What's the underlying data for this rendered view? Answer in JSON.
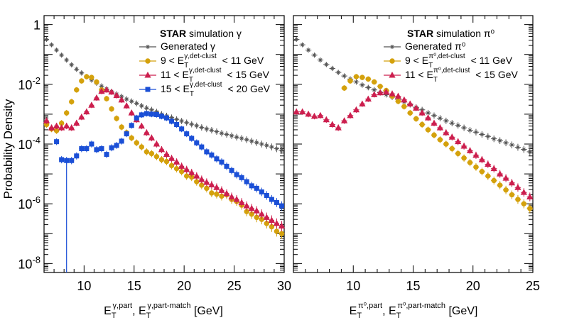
{
  "chart_data": [
    {
      "type": "scatter",
      "panel": "left",
      "legend_header_bold": "STAR",
      "legend_header": "simulation γ",
      "xlim": [
        6,
        30
      ],
      "ylim_log10": [
        -8.3,
        0.3
      ],
      "xticks": [
        10,
        15,
        20,
        25,
        30
      ],
      "ylabel": "Probability Density",
      "xlabel_parts": [
        "E",
        "T",
        "γ,part",
        ", E",
        "T",
        "γ,part-match",
        " [GeV]"
      ],
      "series": [
        {
          "name": "Generated γ",
          "legend_parts": [
            "Generated γ"
          ],
          "color": "#555555",
          "marker": "star",
          "x": [
            6.25,
            6.75,
            7.25,
            7.75,
            8.25,
            8.75,
            9.25,
            9.75,
            10.25,
            10.75,
            11.25,
            11.75,
            12.25,
            12.75,
            13.25,
            13.75,
            14.25,
            14.75,
            15.25,
            15.75,
            16.25,
            16.75,
            17.25,
            17.75,
            18.25,
            18.75,
            19.25,
            19.75,
            20.25,
            20.75,
            21.25,
            21.75,
            22.25,
            22.75,
            23.25,
            23.75,
            24.25,
            24.75,
            25.25,
            25.75,
            26.25,
            26.75,
            27.25,
            27.75,
            28.25,
            28.75,
            29.25,
            29.75
          ],
          "y": [
            0.32,
            0.21,
            0.14,
            0.095,
            0.065,
            0.045,
            0.032,
            0.024,
            0.018,
            0.014,
            0.011,
            0.0087,
            0.007,
            0.0057,
            0.0047,
            0.0039,
            0.0032,
            0.0027,
            0.0023,
            0.0019,
            0.0016,
            0.0014,
            0.0012,
            0.001,
            0.00088,
            0.00077,
            0.00067,
            0.00059,
            0.00052,
            0.00046,
            0.00041,
            0.00036,
            0.00032,
            0.00029,
            0.00026,
            0.00023,
            0.00021,
            0.00019,
            0.00017,
            0.000155,
            0.00014,
            0.000125,
            0.000112,
            0.0001,
            9e-05,
            8e-05,
            7e-05,
            6.2e-05
          ]
        },
        {
          "name": "9 < E_T^{γ,det-clust} < 11 GeV",
          "legend_parts": [
            "9 < E",
            "T",
            "γ,det-clust",
            "< 11 GeV"
          ],
          "color": "#d4a10c",
          "marker": "circle",
          "x": [
            6.25,
            6.75,
            7.25,
            7.75,
            8.25,
            8.75,
            9.25,
            9.75,
            10.25,
            10.75,
            11.25,
            11.75,
            12.25,
            12.75,
            13.25,
            13.75,
            14.25,
            14.75,
            15.25,
            15.75,
            16.25,
            16.75,
            17.25,
            17.75,
            18.25,
            18.75,
            19.25,
            19.75,
            20.25,
            20.75,
            21.25,
            21.75,
            22.25,
            22.75,
            23.25,
            23.75,
            24.25,
            24.75,
            25.25,
            25.75,
            26.25,
            26.75,
            27.25,
            27.75,
            28.25,
            28.75,
            29.25,
            29.75
          ],
          "y": [
            0.00045,
            0.00032,
            0.00028,
            0.0005,
            0.0011,
            0.0026,
            0.0065,
            0.013,
            0.018,
            0.017,
            0.012,
            0.0065,
            0.0033,
            0.0015,
            0.00072,
            0.00037,
            0.00024,
            0.00016,
            0.00011,
            8e-05,
            5.5e-05,
            4.8e-05,
            3.8e-05,
            3e-05,
            2.6e-05,
            1.9e-05,
            1.5e-05,
            1.2e-05,
            8.5e-06,
            7.8e-06,
            5.5e-06,
            4.2e-06,
            3.3e-06,
            2.3e-06,
            2.1e-06,
            1.8e-06,
            2e-06,
            1.4e-06,
            1.2e-06,
            9e-07,
            5.5e-07,
            4.5e-07,
            3.5e-07,
            3e-07,
            2.2e-07,
            1.7e-07,
            1.2e-07,
            1e-07
          ]
        },
        {
          "name": "11 < E_T^{γ,det-clust} < 15 GeV",
          "legend_parts": [
            "11 < E",
            "T",
            "γ,det-clust",
            "< 15 GeV"
          ],
          "color": "#cc1f4e",
          "marker": "triangle",
          "x": [
            6.25,
            6.75,
            7.25,
            7.75,
            8.25,
            8.75,
            9.25,
            9.75,
            10.25,
            10.75,
            11.25,
            11.75,
            12.25,
            12.75,
            13.25,
            13.75,
            14.25,
            14.75,
            15.25,
            15.75,
            16.25,
            16.75,
            17.25,
            17.75,
            18.25,
            18.75,
            19.25,
            19.75,
            20.25,
            20.75,
            21.25,
            21.75,
            22.25,
            22.75,
            23.25,
            23.75,
            24.25,
            24.75,
            25.25,
            25.75,
            26.25,
            26.75,
            27.25,
            27.75,
            28.25,
            28.75,
            29.25,
            29.75
          ],
          "y": [
            0.0006,
            0.00035,
            0.0004,
            0.00035,
            0.0004,
            0.00035,
            0.0005,
            0.0008,
            0.0012,
            0.002,
            0.0035,
            0.0058,
            0.0065,
            0.0055,
            0.0042,
            0.003,
            0.0019,
            0.0011,
            0.00065,
            0.0004,
            0.00024,
            0.00016,
            0.0001,
            6.5e-05,
            4.5e-05,
            3.3e-05,
            2.5e-05,
            1.8e-05,
            1.4e-05,
            1.1e-05,
            8.5e-06,
            6.5e-06,
            5.2e-06,
            4.3e-06,
            3.5e-06,
            2.8e-06,
            2.2e-06,
            1.7e-06,
            1.4e-06,
            1.1e-06,
            8.5e-07,
            7e-07,
            5.8e-07,
            4.5e-07,
            3.5e-07,
            2.8e-07,
            2.2e-07,
            1.8e-07
          ]
        },
        {
          "name": "15 < E_T^{γ,det-clust} < 20 GeV",
          "legend_parts": [
            "15 < E",
            "T",
            "γ,det-clust",
            "< 20 GeV"
          ],
          "color": "#1a4fd6",
          "marker": "square",
          "x": [
            6.25,
            6.75,
            7.25,
            7.75,
            8.25,
            8.75,
            9.25,
            9.75,
            10.25,
            10.75,
            11.25,
            11.75,
            12.25,
            12.75,
            13.25,
            13.75,
            14.25,
            14.75,
            15.25,
            15.75,
            16.25,
            16.75,
            17.25,
            17.75,
            18.25,
            18.75,
            19.25,
            19.75,
            20.25,
            20.75,
            21.25,
            21.75,
            22.25,
            22.75,
            23.25,
            23.75,
            24.25,
            24.75,
            25.25,
            25.75,
            26.25,
            26.75,
            27.25,
            27.75,
            28.25,
            28.75,
            29.25,
            29.75
          ],
          "y": [
            null,
            null,
            0.00012,
            3e-05,
            2.8e-05,
            2.8e-05,
            4e-05,
            7e-05,
            7e-05,
            0.0001,
            6.5e-05,
            7e-05,
            4.5e-05,
            7.5e-05,
            9e-05,
            0.000125,
            0.00022,
            0.00042,
            0.00075,
            0.00095,
            0.00105,
            0.001,
            0.00097,
            0.00085,
            0.00075,
            0.00058,
            0.00045,
            0.00032,
            0.00022,
            0.000155,
            0.00011,
            8e-05,
            5.5e-05,
            4.3e-05,
            3.2e-05,
            2.5e-05,
            1.8e-05,
            1.3e-05,
            9.5e-06,
            7.5e-06,
            5.5e-06,
            4e-06,
            3.3e-06,
            2.5e-06,
            1.9e-06,
            1.4e-06,
            1.1e-06,
            8.5e-07
          ]
        }
      ]
    },
    {
      "type": "scatter",
      "panel": "right",
      "legend_header_bold": "STAR",
      "legend_header": "simulation π⁰",
      "xlim": [
        5,
        25
      ],
      "ylim_log10": [
        -8.3,
        0.3
      ],
      "xticks": [
        10,
        15,
        20,
        25
      ],
      "xlabel_parts": [
        "E",
        "T",
        "π⁰,part",
        ", E",
        "T",
        "π⁰,part-match",
        " [GeV]"
      ],
      "series": [
        {
          "name": "Generated π⁰",
          "legend_parts": [
            "Generated π⁰"
          ],
          "color": "#555555",
          "marker": "star",
          "x": [
            5.25,
            5.75,
            6.25,
            6.75,
            7.25,
            7.75,
            8.25,
            8.75,
            9.25,
            9.75,
            10.25,
            10.75,
            11.25,
            11.75,
            12.25,
            12.75,
            13.25,
            13.75,
            14.25,
            14.75,
            15.25,
            15.75,
            16.25,
            16.75,
            17.25,
            17.75,
            18.25,
            18.75,
            19.25,
            19.75,
            20.25,
            20.75,
            21.25,
            21.75,
            22.25,
            22.75,
            23.25,
            23.75,
            24.25,
            24.75
          ],
          "y": [
            0.32,
            0.21,
            0.14,
            0.095,
            0.065,
            0.046,
            0.034,
            0.025,
            0.019,
            0.015,
            0.012,
            0.0095,
            0.0078,
            0.0065,
            0.0054,
            0.0045,
            0.0037,
            0.0031,
            0.0026,
            0.0021,
            0.0017,
            0.0014,
            0.0011,
            0.0009,
            0.00073,
            0.0006,
            0.0005,
            0.00042,
            0.00035,
            0.00029,
            0.00025,
            0.00021,
            0.00018,
            0.00015,
            0.00013,
            0.00011,
            9.35e-05,
            7.8e-05,
            6.6e-05,
            5.5e-05
          ]
        },
        {
          "name": "9 < E_T^{π⁰,det-clust} < 11 GeV",
          "legend_parts": [
            "9 < E",
            "T",
            "π⁰,det-clust",
            "< 11 GeV"
          ],
          "color": "#d4a10c",
          "marker": "circle",
          "x": [
            9.25,
            9.75,
            10.25,
            10.75,
            11.25,
            11.75,
            12.25,
            12.75,
            13.25,
            13.75,
            14.25,
            14.75,
            15.25,
            15.75,
            16.25,
            16.75,
            17.25,
            17.75,
            18.25,
            18.75,
            19.25,
            19.75,
            20.25,
            20.75,
            21.25,
            21.75,
            22.25,
            22.75,
            23.25,
            23.75,
            24.25,
            24.75
          ],
          "y": [
            0.0075,
            0.013,
            0.018,
            0.017,
            0.015,
            0.012,
            0.0085,
            0.0062,
            0.004,
            0.0027,
            0.0018,
            0.0011,
            0.0007,
            0.00045,
            0.0003,
            0.0002,
            0.00014,
            0.0001,
            7e-05,
            4.8e-05,
            3.4e-05,
            2.4e-05,
            1.7e-05,
            1.2e-05,
            8.5e-06,
            6e-06,
            4.2e-06,
            2.9e-06,
            2e-06,
            1.4e-06,
            1e-06,
            7e-07
          ]
        },
        {
          "name": "11 < E_T^{π⁰,det-clust} < 15 GeV",
          "legend_parts": [
            "11 < E",
            "T",
            "π⁰,det-clust",
            "< 15 GeV"
          ],
          "color": "#cc1f4e",
          "marker": "triangle",
          "x": [
            5.25,
            5.75,
            6.25,
            6.75,
            7.25,
            7.75,
            8.25,
            8.75,
            9.25,
            9.75,
            10.25,
            10.75,
            11.25,
            11.75,
            12.25,
            12.75,
            13.25,
            13.75,
            14.25,
            14.75,
            15.25,
            15.75,
            16.25,
            16.75,
            17.25,
            17.75,
            18.25,
            18.75,
            19.25,
            19.75,
            20.25,
            20.75,
            21.25,
            21.75,
            22.25,
            22.75,
            23.25,
            23.75,
            24.25,
            24.75
          ],
          "y": [
            0.0012,
            0.0012,
            0.001,
            0.00085,
            0.0009,
            0.00065,
            0.00045,
            0.00035,
            0.0006,
            0.0009,
            0.0014,
            0.0022,
            0.0032,
            0.0045,
            0.0052,
            0.0055,
            0.0048,
            0.004,
            0.003,
            0.0022,
            0.0016,
            0.0011,
            0.00075,
            0.0005,
            0.00035,
            0.00024,
            0.00017,
            0.00012,
            8.5e-05,
            6e-05,
            4.2e-05,
            3e-05,
            2.1e-05,
            1.5e-05,
            1e-05,
            7.2e-06,
            5e-06,
            3.5e-06,
            2.4e-06,
            1.7e-06
          ]
        }
      ]
    }
  ]
}
